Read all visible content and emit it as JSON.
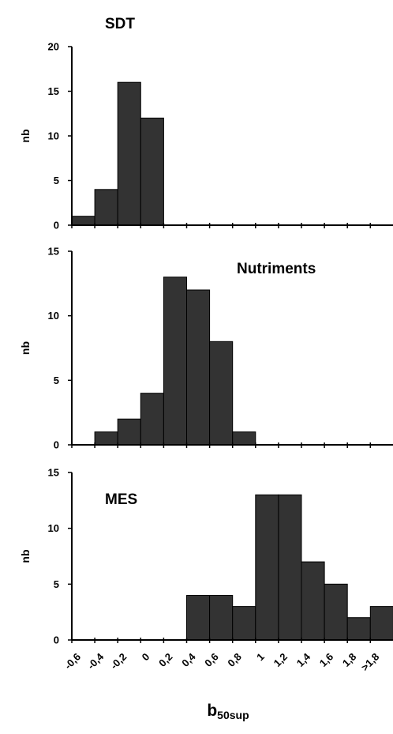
{
  "chart_data": [
    {
      "type": "bar",
      "title": "SDT",
      "ylabel": "nb",
      "ylim": [
        0,
        20
      ],
      "yticks": [
        "0",
        "5",
        "10",
        "15",
        "20"
      ],
      "categories": [
        "-0.6",
        "-0.4",
        "-0.2",
        "0",
        "0.2",
        "0.4",
        "0.6",
        "0.8",
        "1",
        "1.2",
        "1.4",
        "1.6",
        "1.8",
        ">1.8"
      ],
      "values": [
        1,
        4,
        16,
        12,
        0,
        0,
        0,
        0,
        0,
        0,
        0,
        0,
        0,
        0
      ]
    },
    {
      "type": "bar",
      "title": "Nutriments",
      "ylabel": "nb",
      "ylim": [
        0,
        15
      ],
      "yticks": [
        "0",
        "5",
        "10",
        "15"
      ],
      "categories": [
        "-0.6",
        "-0.4",
        "-0.2",
        "0",
        "0.2",
        "0.4",
        "0.6",
        "0.8",
        "1",
        "1.2",
        "1.4",
        "1.6",
        "1.8",
        ">1.8"
      ],
      "values": [
        0,
        1,
        2,
        4,
        13,
        12,
        8,
        1,
        0,
        0,
        0,
        0,
        0,
        0
      ]
    },
    {
      "type": "bar",
      "title": "MES",
      "ylabel": "nb",
      "ylim": [
        0,
        15
      ],
      "yticks": [
        "0",
        "5",
        "10",
        "15"
      ],
      "categories": [
        "-0.6",
        "-0.4",
        "-0.2",
        "0",
        "0.2",
        "0.4",
        "0.6",
        "0.8",
        "1",
        "1.2",
        "1.4",
        "1.6",
        "1.8",
        ">1.8"
      ],
      "values": [
        0,
        0,
        0,
        0,
        0,
        4,
        4,
        3,
        13,
        13,
        7,
        5,
        2,
        3
      ]
    }
  ],
  "x_tick_labels": [
    "-0,6",
    "-0,4",
    "-0,2",
    "0",
    "0,2",
    "0,4",
    "0,6",
    "0,8",
    "1",
    "1,2",
    "1,4",
    "1,6",
    "1,8",
    ">1,8"
  ],
  "xlabel": {
    "main": "b",
    "sub": "50sup"
  }
}
